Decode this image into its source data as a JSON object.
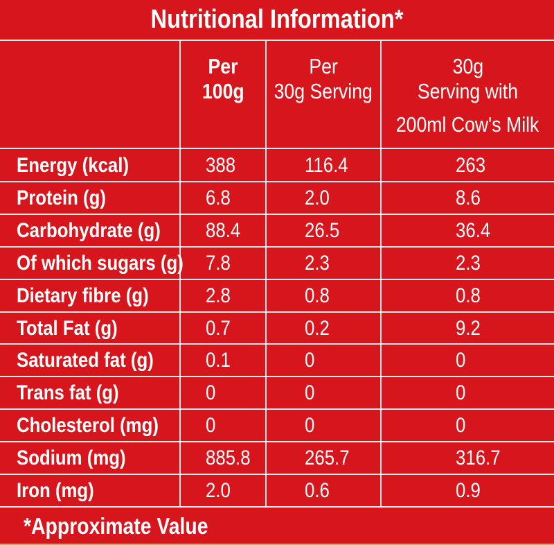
{
  "title": "Nutritional Information*",
  "headers": [
    {
      "lines": [
        "Per",
        "100g"
      ]
    },
    {
      "lines": [
        "Per",
        "30g Serving"
      ]
    },
    {
      "lines": [
        "30g",
        "Serving with",
        "200ml Cow's Milk"
      ]
    }
  ],
  "rows": [
    {
      "label": "Energy (kcal)",
      "per100g": "388",
      "per30g": "116.4",
      "withMilk": "263"
    },
    {
      "label": "Protein (g)",
      "per100g": "6.8",
      "per30g": "2.0",
      "withMilk": "8.6"
    },
    {
      "label": "Carbohydrate (g)",
      "per100g": "88.4",
      "per30g": "26.5",
      "withMilk": "36.4"
    },
    {
      "label": "Of which sugars (g)",
      "per100g": "7.8",
      "per30g": "2.3",
      "withMilk": "2.3"
    },
    {
      "label": "Dietary fibre (g)",
      "per100g": "2.8",
      "per30g": "0.8",
      "withMilk": "0.8"
    },
    {
      "label": "Total Fat (g)",
      "per100g": "0.7",
      "per30g": "0.2",
      "withMilk": "9.2"
    },
    {
      "label": "Saturated fat (g)",
      "per100g": "0.1",
      "per30g": "0",
      "withMilk": "0"
    },
    {
      "label": "Trans fat (g)",
      "per100g": "0",
      "per30g": "0",
      "withMilk": "0"
    },
    {
      "label": "Cholesterol (mg)",
      "per100g": "0",
      "per30g": "0",
      "withMilk": "0"
    },
    {
      "label": "Sodium (mg)",
      "per100g": "885.8",
      "per30g": "265.7",
      "withMilk": "316.7"
    },
    {
      "label": "Iron (mg)",
      "per100g": "2.0",
      "per30g": "0.6",
      "withMilk": "0.9"
    }
  ],
  "footnote": "*Approximate Value",
  "colors": {
    "panel": "#d7151d",
    "text": "#ffffff",
    "border": "#ffffff",
    "backdrop": "#d9a45a"
  }
}
